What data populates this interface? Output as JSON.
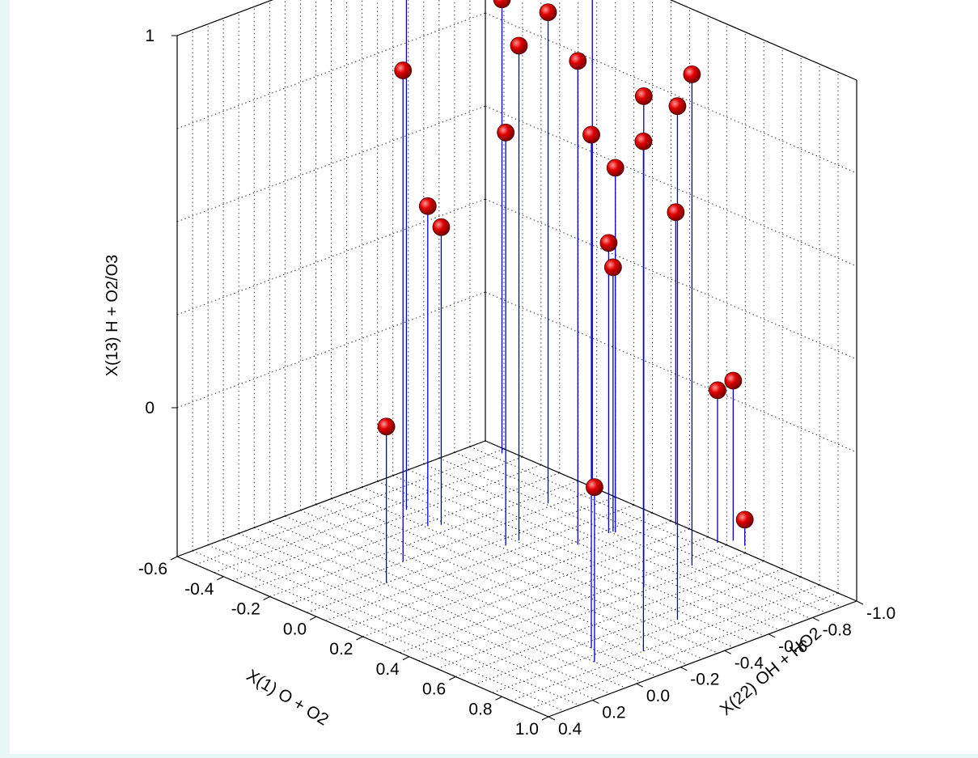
{
  "chart_data": {
    "type": "scatter",
    "subtype": "3d-stem-scatter",
    "title": "",
    "xlabel": "X(1) O + O2",
    "ylabel": "X(22) OH + HO2",
    "zlabel": "X(13) H + O2/O3",
    "x_ticks": [
      "-0.6",
      "-0.4",
      "-0.2",
      "0.0",
      "0.2",
      "0.4",
      "0.6",
      "0.8",
      "1.0"
    ],
    "y_ticks": [
      "-1.0",
      "-0.8",
      "-0.6",
      "-0.4",
      "-0.2",
      "0.0",
      "0.2",
      "0.4"
    ],
    "z_ticks": [
      "0",
      "1"
    ],
    "xlim": [
      -0.6,
      1.0
    ],
    "ylim": [
      -1.0,
      0.4
    ],
    "zlim": [
      -0.4,
      1.0
    ],
    "grid": true,
    "colors": {
      "marker": "#e00000",
      "stem": "#0000cc",
      "background": "#e6f7f4"
    },
    "points": [
      {
        "x": -0.5,
        "y": -0.97,
        "z": 0.82
      },
      {
        "x": -0.12,
        "y": -0.98,
        "z": 0.95
      },
      {
        "x": -0.14,
        "y": -0.8,
        "z": 0.92
      },
      {
        "x": -0.39,
        "y": -0.42,
        "z": 1.0
      },
      {
        "x": 0.0,
        "y": -0.52,
        "z": 0.93
      },
      {
        "x": -0.12,
        "y": -0.12,
        "z": 0.92
      },
      {
        "x": 0.5,
        "y": -0.56,
        "z": 0.92
      },
      {
        "x": 0.72,
        "y": -0.09,
        "z": 0.98
      },
      {
        "x": 0.84,
        "y": -0.2,
        "z": 0.97
      },
      {
        "x": 0.74,
        "y": -0.46,
        "z": 0.98
      },
      {
        "x": 0.48,
        "y": -0.8,
        "z": 0.92
      },
      {
        "x": 0.14,
        "y": -0.64,
        "z": 0.9
      },
      {
        "x": 0.0,
        "y": -0.46,
        "z": 0.71
      },
      {
        "x": 0.15,
        "y": -0.8,
        "z": 0.58
      },
      {
        "x": -0.26,
        "y": -0.38,
        "z": 0.46
      },
      {
        "x": -0.24,
        "y": -0.42,
        "z": 0.4
      },
      {
        "x": 0.23,
        "y": -0.99,
        "z": 0.44
      },
      {
        "x": 0.14,
        "y": -0.78,
        "z": 0.38
      },
      {
        "x": 0.14,
        "y": -0.8,
        "z": 0.31
      },
      {
        "x": 0.41,
        "y": -0.99,
        "z": 0.01
      },
      {
        "x": 0.43,
        "y": -1.04,
        "z": 0.03
      },
      {
        "x": -0.04,
        "y": 0.04,
        "z": 0.02
      },
      {
        "x": 0.8,
        "y": -0.02,
        "z": 0.07
      },
      {
        "x": 0.48,
        "y": -1.04,
        "z": -0.33
      }
    ]
  }
}
